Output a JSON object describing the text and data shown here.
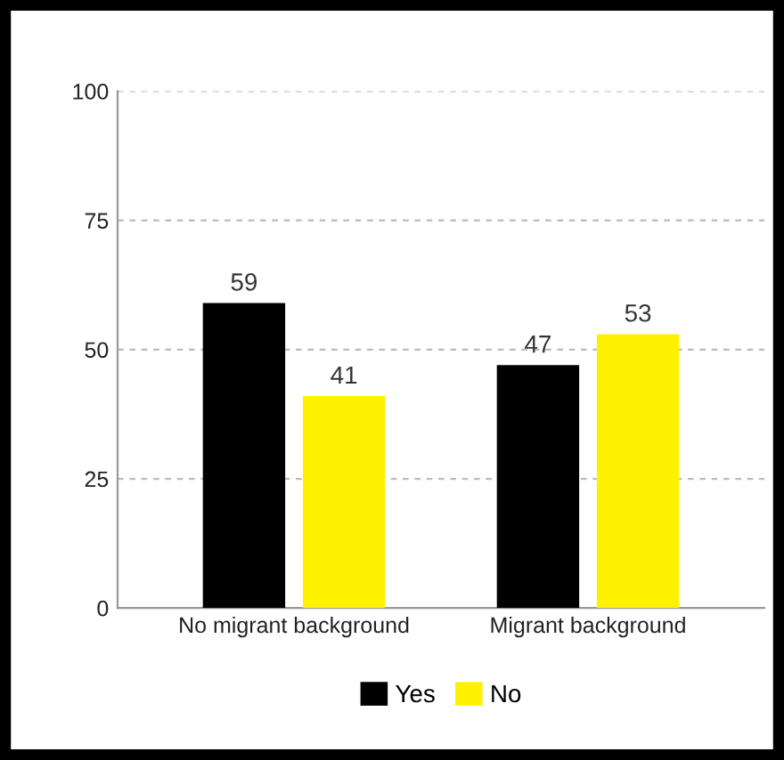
{
  "chart_data": {
    "type": "bar",
    "categories": [
      "No migrant background",
      "Migrant background"
    ],
    "series": [
      {
        "name": "Yes",
        "color": "#000000",
        "values": [
          59,
          47
        ]
      },
      {
        "name": "No",
        "color": "#fff200",
        "values": [
          41,
          53
        ]
      }
    ],
    "ylim": [
      0,
      100
    ],
    "yticks": [
      0,
      25,
      50,
      75,
      100
    ],
    "grid": "y",
    "legend": "bottom",
    "data_labels": true
  }
}
